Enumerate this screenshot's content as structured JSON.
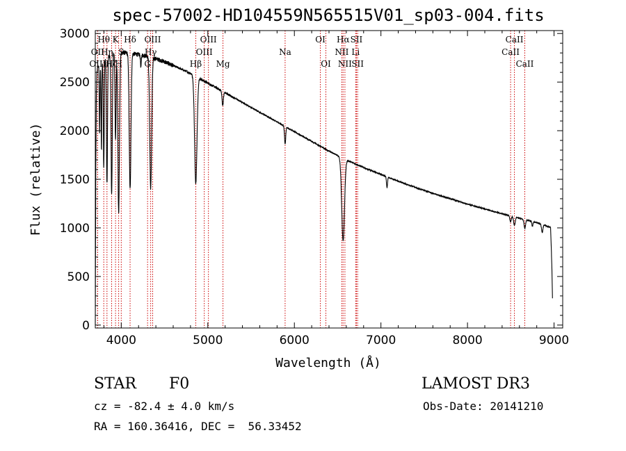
{
  "chart_data": {
    "type": "line",
    "title": "spec-57002-HD104559N565515V01_sp03-004.fits",
    "xlabel": "Wavelength (Å)",
    "ylabel": "Flux (relative)",
    "xlim": [
      3700,
      9100
    ],
    "ylim": [
      -30,
      3030
    ],
    "xticks": [
      4000,
      5000,
      6000,
      7000,
      8000,
      9000
    ],
    "yticks": [
      0,
      500,
      1000,
      1500,
      2000,
      2500,
      3000
    ],
    "continuum": [
      [
        3700,
        0
      ],
      [
        3703,
        900
      ],
      [
        3706,
        1600
      ],
      [
        3712,
        2350
      ],
      [
        3720,
        2600
      ],
      [
        3730,
        2660
      ],
      [
        3800,
        2720
      ],
      [
        3850,
        2760
      ],
      [
        3900,
        2790
      ],
      [
        3970,
        2810
      ],
      [
        4050,
        2800
      ],
      [
        4150,
        2790
      ],
      [
        4300,
        2770
      ],
      [
        4400,
        2740
      ],
      [
        4500,
        2710
      ],
      [
        4600,
        2670
      ],
      [
        4700,
        2630
      ],
      [
        4800,
        2590
      ],
      [
        4900,
        2540
      ],
      [
        5000,
        2490
      ],
      [
        5100,
        2440
      ],
      [
        5200,
        2390
      ],
      [
        5300,
        2340
      ],
      [
        5400,
        2290
      ],
      [
        5500,
        2240
      ],
      [
        5600,
        2190
      ],
      [
        5700,
        2140
      ],
      [
        5800,
        2090
      ],
      [
        5900,
        2040
      ],
      [
        6000,
        1990
      ],
      [
        6100,
        1940
      ],
      [
        6200,
        1890
      ],
      [
        6300,
        1840
      ],
      [
        6400,
        1790
      ],
      [
        6500,
        1745
      ],
      [
        6600,
        1700
      ],
      [
        6700,
        1660
      ],
      [
        6800,
        1620
      ],
      [
        6900,
        1585
      ],
      [
        7000,
        1550
      ],
      [
        7200,
        1480
      ],
      [
        7400,
        1415
      ],
      [
        7600,
        1355
      ],
      [
        7800,
        1300
      ],
      [
        8000,
        1245
      ],
      [
        8200,
        1195
      ],
      [
        8400,
        1145
      ],
      [
        8600,
        1100
      ],
      [
        8800,
        1055
      ],
      [
        8960,
        1005
      ],
      [
        8975,
        600
      ],
      [
        8982,
        250
      ]
    ],
    "absorption": [
      {
        "center": 3750,
        "depth": 700,
        "width": 4
      },
      {
        "center": 3771,
        "depth": 900,
        "width": 4
      },
      {
        "center": 3798,
        "depth": 1100,
        "width": 5
      },
      {
        "center": 3835,
        "depth": 1300,
        "width": 6
      },
      {
        "center": 3889,
        "depth": 1450,
        "width": 7
      },
      {
        "center": 3934,
        "depth": 900,
        "width": 6
      },
      {
        "center": 3970,
        "depth": 1650,
        "width": 9
      },
      {
        "center": 4102,
        "depth": 1400,
        "width": 10
      },
      {
        "center": 4227,
        "depth": 120,
        "width": 5
      },
      {
        "center": 4340,
        "depth": 1350,
        "width": 11
      },
      {
        "center": 4861,
        "depth": 1100,
        "width": 14
      },
      {
        "center": 5172,
        "depth": 140,
        "width": 8
      },
      {
        "center": 5893,
        "depth": 180,
        "width": 7
      },
      {
        "center": 6563,
        "depth": 850,
        "width": 16
      },
      {
        "center": 7070,
        "depth": 110,
        "width": 6
      },
      {
        "center": 8498,
        "depth": 60,
        "width": 8
      },
      {
        "center": 8542,
        "depth": 90,
        "width": 9
      },
      {
        "center": 8662,
        "depth": 90,
        "width": 9
      },
      {
        "center": 8750,
        "depth": 50,
        "width": 6
      },
      {
        "center": 8863,
        "depth": 80,
        "width": 8
      }
    ],
    "line_markers": [
      {
        "label": "Hθ",
        "x": 3798,
        "row": 0
      },
      {
        "label": "OII",
        "x": 3727,
        "row": 1
      },
      {
        "label": "OIII",
        "x": 3727,
        "row": 2
      },
      {
        "label": "K",
        "x": 3934,
        "row": 0
      },
      {
        "label": "Hη",
        "x": 3835,
        "row": 1
      },
      {
        "label": "Hζ",
        "x": 3889,
        "row": 2
      },
      {
        "label": "Hδ",
        "x": 4102,
        "row": 0
      },
      {
        "label": "S",
        "x": 4000,
        "row": 1
      },
      {
        "label": "H",
        "x": 3970,
        "row": 2
      },
      {
        "label": "OIII",
        "x": 4363,
        "row": 0
      },
      {
        "label": "Hγ",
        "x": 4340,
        "row": 1
      },
      {
        "label": "G",
        "x": 4304,
        "row": 2
      },
      {
        "label": "OIII",
        "x": 5007,
        "row": 0
      },
      {
        "label": "OIII",
        "x": 4959,
        "row": 1
      },
      {
        "label": "Hβ",
        "x": 4861,
        "row": 2
      },
      {
        "label": "Mg",
        "x": 5175,
        "row": 2
      },
      {
        "label": "Na",
        "x": 5893,
        "row": 1
      },
      {
        "label": "OI",
        "x": 6300,
        "row": 0
      },
      {
        "label": "OI",
        "x": 6364,
        "row": 2
      },
      {
        "label": "Hα",
        "x": 6563,
        "row": 0
      },
      {
        "label": "SII",
        "x": 6717,
        "row": 0
      },
      {
        "label": "NII",
        "x": 6548,
        "row": 1
      },
      {
        "label": "Li",
        "x": 6708,
        "row": 1
      },
      {
        "label": "NII",
        "x": 6584,
        "row": 2
      },
      {
        "label": "SII",
        "x": 6731,
        "row": 2
      },
      {
        "label": "CaII",
        "x": 8542,
        "row": 0
      },
      {
        "label": "CaII",
        "x": 8498,
        "row": 1
      },
      {
        "label": "CaII",
        "x": 8662,
        "row": 2
      }
    ]
  },
  "info": {
    "object_class": "STAR",
    "subclass": "F0",
    "survey": "LAMOST DR3",
    "cz": "cz = -82.4 ± 4.0 km/s",
    "obs_date": "Obs-Date: 20141210",
    "coords": "RA = 160.36416, DEC =  56.33452"
  },
  "colors": {
    "axis": "#000000",
    "spectrum": "#000000",
    "marker_line": "#cc0000"
  }
}
